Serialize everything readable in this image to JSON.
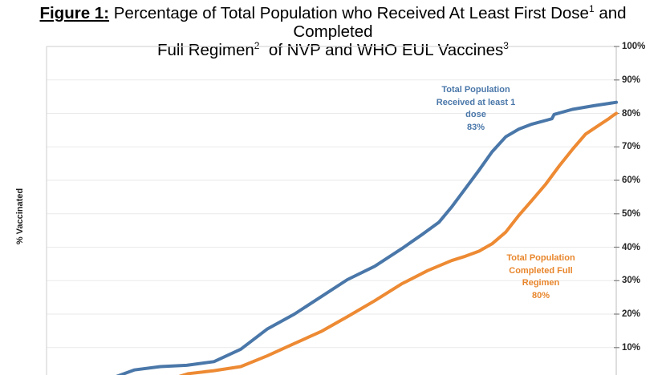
{
  "figure": {
    "title_label": "Figure 1:",
    "title_part1": " Percentage of Total Population who Received At Least First Dose",
    "title_sup1": "1",
    "title_part2": " and Completed",
    "title_part3": "Full Regimen",
    "title_sup2": "2",
    "title_part4": "  of NVP and WHO EUL Vaccines",
    "title_sup3": "3"
  },
  "colors": {
    "first_dose_line": "#4A77A9",
    "full_regimen_line": "#ED8A33",
    "gridline": "#EAEAEA",
    "plot_border": "#D6D6D6",
    "axis_line": "#C9C9C9",
    "tick_mark": "#7F7F7F",
    "tick_text": "#262626"
  },
  "annotations": {
    "first_dose": {
      "text": "Total Population\nReceived at least 1\ndose\n83%",
      "color": "#4A77A9"
    },
    "full_regimen": {
      "text": "Total Population\nCompleted Full\nRegimen\n80%",
      "color": "#E8862C"
    }
  },
  "chart_data": {
    "type": "line",
    "title": "Figure 1: Percentage of Total Population who Received At Least First Dose(1) and Completed Full Regimen(2) of NVP and WHO EUL Vaccines(3)",
    "ylabel": "% Vaccinated",
    "ylim": [
      0,
      100
    ],
    "grid": "horizontal",
    "legend_position": "inline text annotations near each line",
    "x_axis_labels": "cropped out of view (timeline runs left to right)",
    "y_ticks": [
      {
        "value": 100,
        "label": "100%"
      },
      {
        "value": 90,
        "label": "90%"
      },
      {
        "value": 80,
        "label": "80%"
      },
      {
        "value": 70,
        "label": "70%"
      },
      {
        "value": 60,
        "label": "60%"
      },
      {
        "value": 50,
        "label": "50%"
      },
      {
        "value": 40,
        "label": "40%"
      },
      {
        "value": 30,
        "label": "30%"
      },
      {
        "value": 20,
        "label": "20%"
      },
      {
        "value": 10,
        "label": "10%"
      }
    ],
    "series": [
      {
        "name": "Total Population Received at least 1 dose",
        "final_value_label": "83%",
        "color": "#4A77A9",
        "points": [
          [
            0.101,
            0
          ],
          [
            0.154,
            3.3
          ],
          [
            0.2,
            4.3
          ],
          [
            0.246,
            4.7
          ],
          [
            0.294,
            5.8
          ],
          [
            0.341,
            9.5
          ],
          [
            0.387,
            15.5
          ],
          [
            0.435,
            20.0
          ],
          [
            0.482,
            25.2
          ],
          [
            0.528,
            30.3
          ],
          [
            0.576,
            34.3
          ],
          [
            0.623,
            39.5
          ],
          [
            0.661,
            44.0
          ],
          [
            0.689,
            47.5
          ],
          [
            0.711,
            52.0
          ],
          [
            0.735,
            57.5
          ],
          [
            0.759,
            63.0
          ],
          [
            0.782,
            68.5
          ],
          [
            0.806,
            73.0
          ],
          [
            0.829,
            75.3
          ],
          [
            0.852,
            76.8
          ],
          [
            0.883,
            78.2
          ],
          [
            0.887,
            78.4
          ],
          [
            0.891,
            79.7
          ],
          [
            0.923,
            81.2
          ],
          [
            0.961,
            82.3
          ],
          [
            1.0,
            83.3
          ]
        ]
      },
      {
        "name": "Total Population Completed Full Regimen",
        "final_value_label": "80%",
        "color": "#ED8A33",
        "points": [
          [
            0.207,
            0
          ],
          [
            0.249,
            2.2
          ],
          [
            0.294,
            3.1
          ],
          [
            0.341,
            4.3
          ],
          [
            0.387,
            7.5
          ],
          [
            0.435,
            11.2
          ],
          [
            0.482,
            14.8
          ],
          [
            0.528,
            19.2
          ],
          [
            0.576,
            24.0
          ],
          [
            0.623,
            29.0
          ],
          [
            0.669,
            33.0
          ],
          [
            0.711,
            36.0
          ],
          [
            0.735,
            37.3
          ],
          [
            0.759,
            38.8
          ],
          [
            0.782,
            41.0
          ],
          [
            0.806,
            44.5
          ],
          [
            0.829,
            49.5
          ],
          [
            0.852,
            54.0
          ],
          [
            0.876,
            58.8
          ],
          [
            0.9,
            64.3
          ],
          [
            0.923,
            69.2
          ],
          [
            0.946,
            73.8
          ],
          [
            0.97,
            76.5
          ],
          [
            0.986,
            78.3
          ],
          [
            0.994,
            79.3
          ],
          [
            1.0,
            80.0
          ]
        ]
      }
    ]
  }
}
